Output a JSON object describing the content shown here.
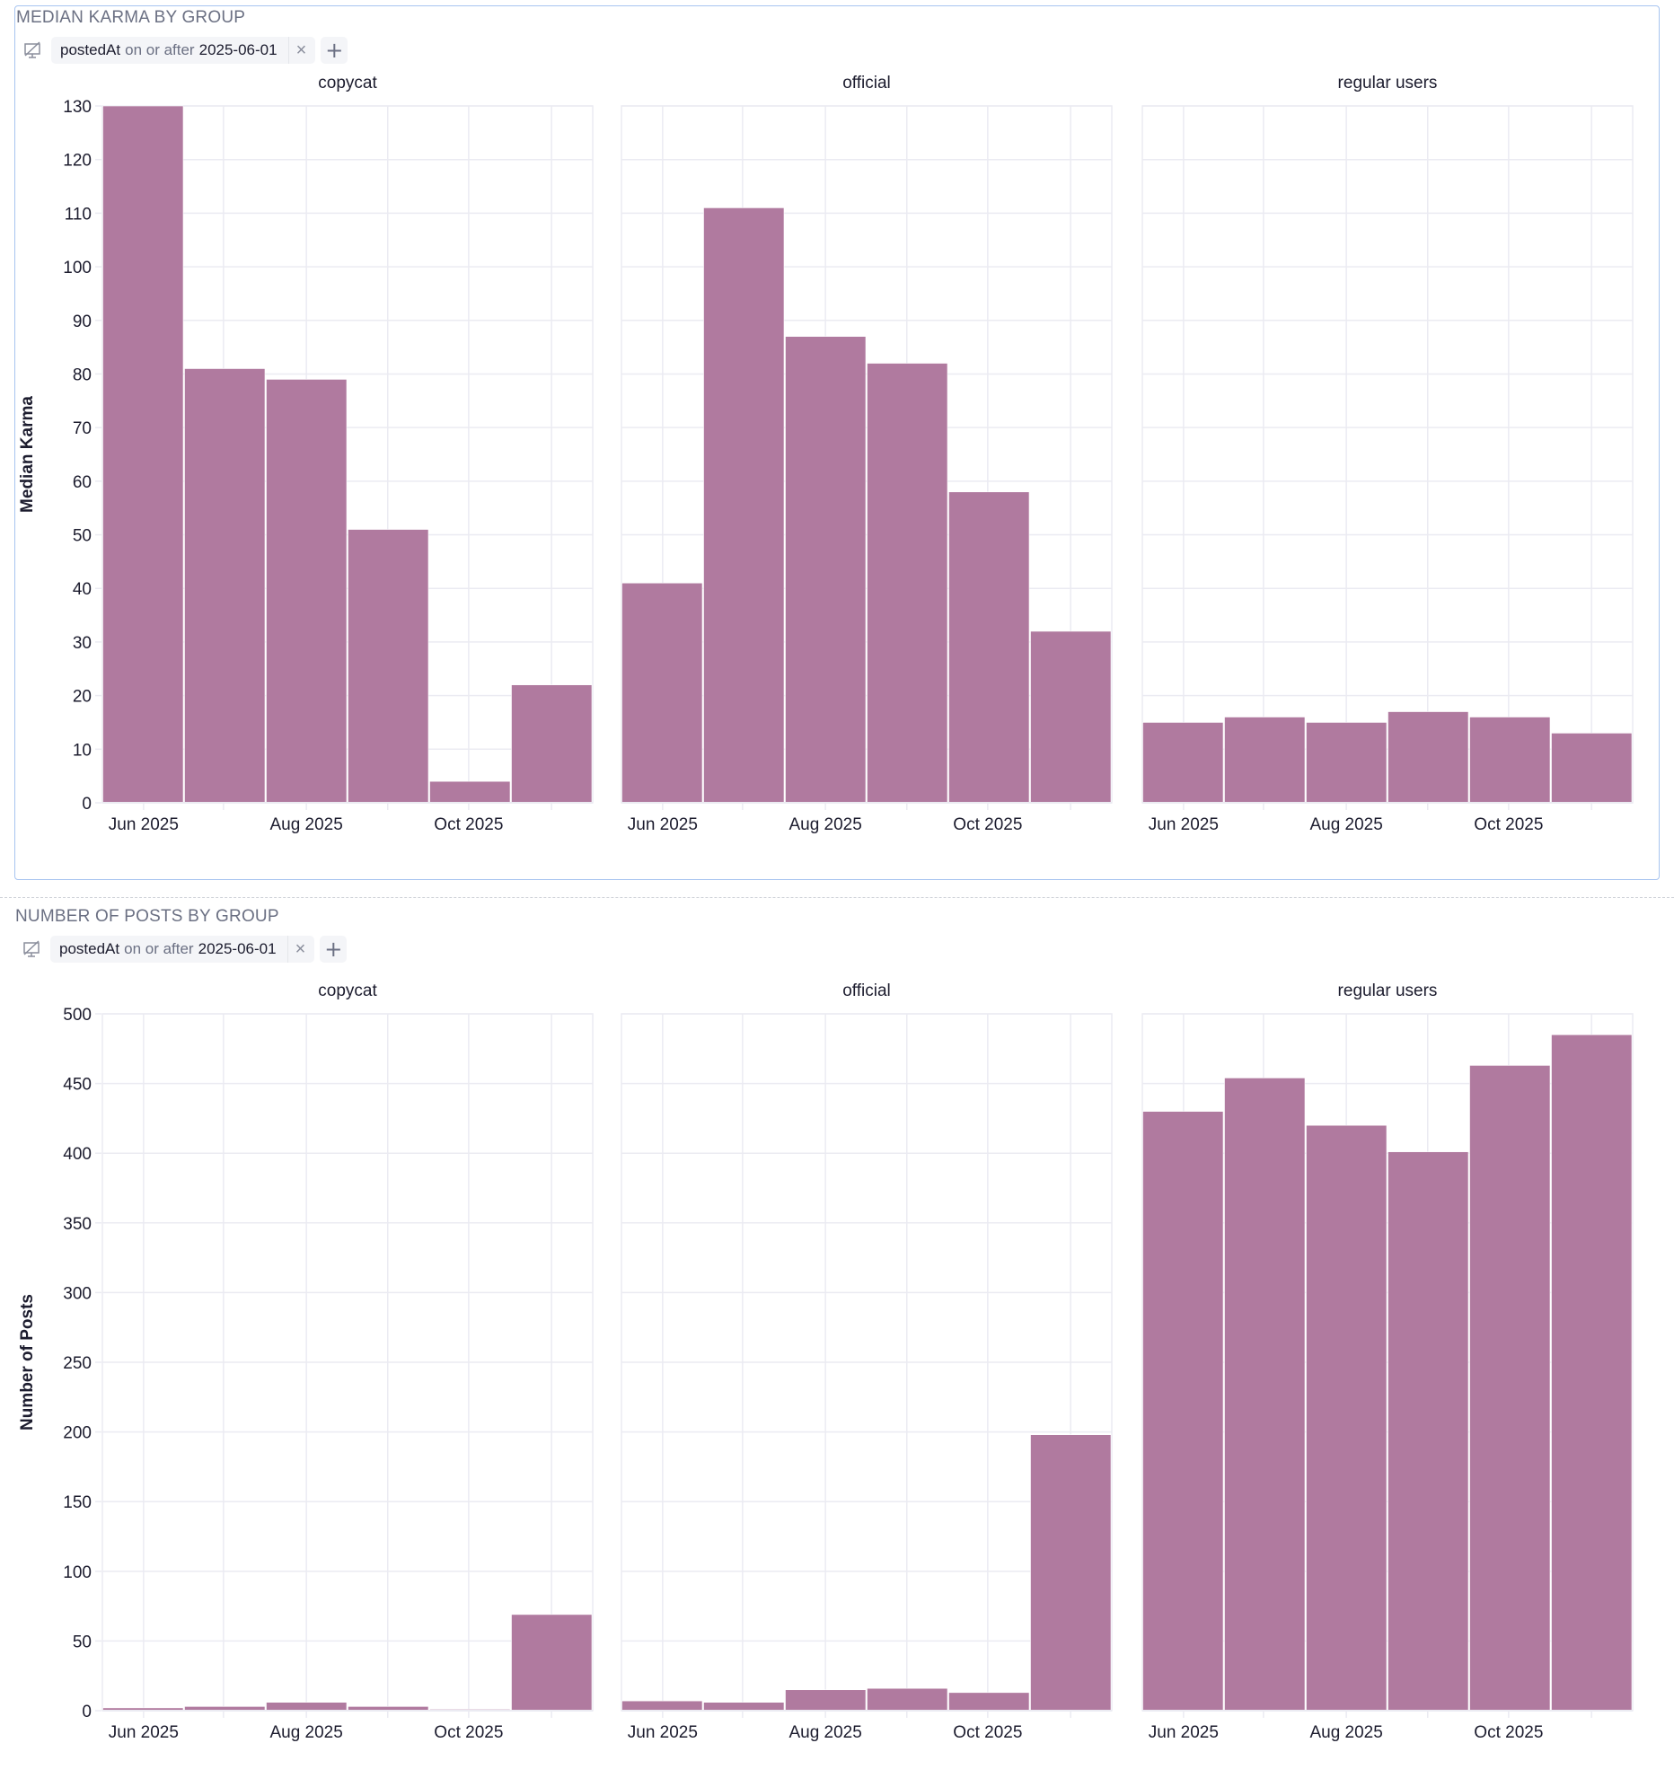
{
  "colors": {
    "bar": "#b07a9f",
    "grid": "#ebebf2",
    "card_border": "#a7c4f0"
  },
  "sections": [
    {
      "title": "MEDIAN KARMA BY GROUP",
      "filter": {
        "icon": "crossfilter-off-icon",
        "field": "postedAt",
        "operator": "on or after",
        "value": "2025-06-01",
        "remove_label": "×",
        "add_label": "+"
      }
    },
    {
      "title": "NUMBER OF POSTS BY GROUP",
      "filter": {
        "icon": "crossfilter-off-icon",
        "field": "postedAt",
        "operator": "on or after",
        "value": "2025-06-01",
        "remove_label": "×",
        "add_label": "+"
      }
    }
  ],
  "chart_data": [
    {
      "type": "bar",
      "title": "MEDIAN KARMA BY GROUP",
      "xlabel": "",
      "ylabel": "Median Karma",
      "ylim": [
        0,
        130
      ],
      "yticks": [
        0,
        10,
        20,
        30,
        40,
        50,
        60,
        70,
        80,
        90,
        100,
        110,
        120,
        130
      ],
      "grid": true,
      "x_tick_labels": [
        "Jun 2025",
        "Aug 2025",
        "Oct 2025"
      ],
      "bins": [
        "bin1",
        "bin2",
        "bin3",
        "bin4",
        "bin5",
        "bin6"
      ],
      "facets": [
        {
          "name": "copycat",
          "values": [
            130,
            81,
            79,
            51,
            4,
            22
          ]
        },
        {
          "name": "official",
          "values": [
            41,
            111,
            87,
            82,
            58,
            32
          ]
        },
        {
          "name": "regular users",
          "values": [
            15,
            16,
            15,
            17,
            16,
            13
          ]
        }
      ]
    },
    {
      "type": "bar",
      "title": "NUMBER OF POSTS BY GROUP",
      "xlabel": "",
      "ylabel": "Number of Posts",
      "ylim": [
        0,
        500
      ],
      "yticks": [
        0,
        50,
        100,
        150,
        200,
        250,
        300,
        350,
        400,
        450,
        500
      ],
      "grid": true,
      "x_tick_labels": [
        "Jun 2025",
        "Aug 2025",
        "Oct 2025"
      ],
      "bins": [
        "bin1",
        "bin2",
        "bin3",
        "bin4",
        "bin5",
        "bin6"
      ],
      "facets": [
        {
          "name": "copycat",
          "values": [
            2,
            3,
            6,
            3,
            1,
            69
          ]
        },
        {
          "name": "official",
          "values": [
            7,
            6,
            15,
            16,
            13,
            198
          ]
        },
        {
          "name": "regular users",
          "values": [
            430,
            454,
            420,
            401,
            463,
            485
          ]
        }
      ]
    }
  ]
}
